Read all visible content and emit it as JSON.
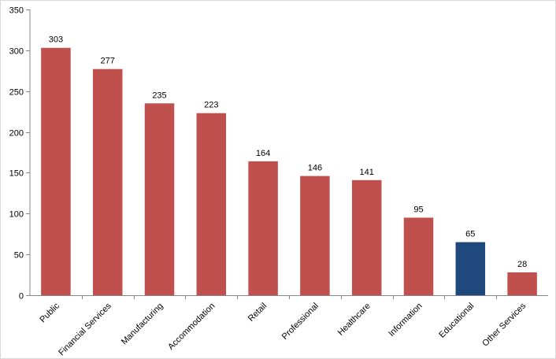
{
  "chart_data": {
    "type": "bar",
    "title": "",
    "xlabel": "",
    "ylabel": "",
    "ylim": [
      0,
      350
    ],
    "yticks": [
      0,
      50,
      100,
      150,
      200,
      250,
      300,
      350
    ],
    "grid": false,
    "legend": "none",
    "categories": [
      "Public",
      "Financial Services",
      "Manufacturing",
      "Accommodation",
      "Retail",
      "Professional",
      "Healthcare",
      "Information",
      "Educational",
      "Other Services"
    ],
    "values": [
      303,
      277,
      235,
      223,
      164,
      146,
      141,
      95,
      65,
      28
    ],
    "colors": {
      "default_bar": "#c0504d",
      "highlight_bar": "#1f497d",
      "axis": "#868686"
    },
    "highlight_category": "Educational"
  }
}
